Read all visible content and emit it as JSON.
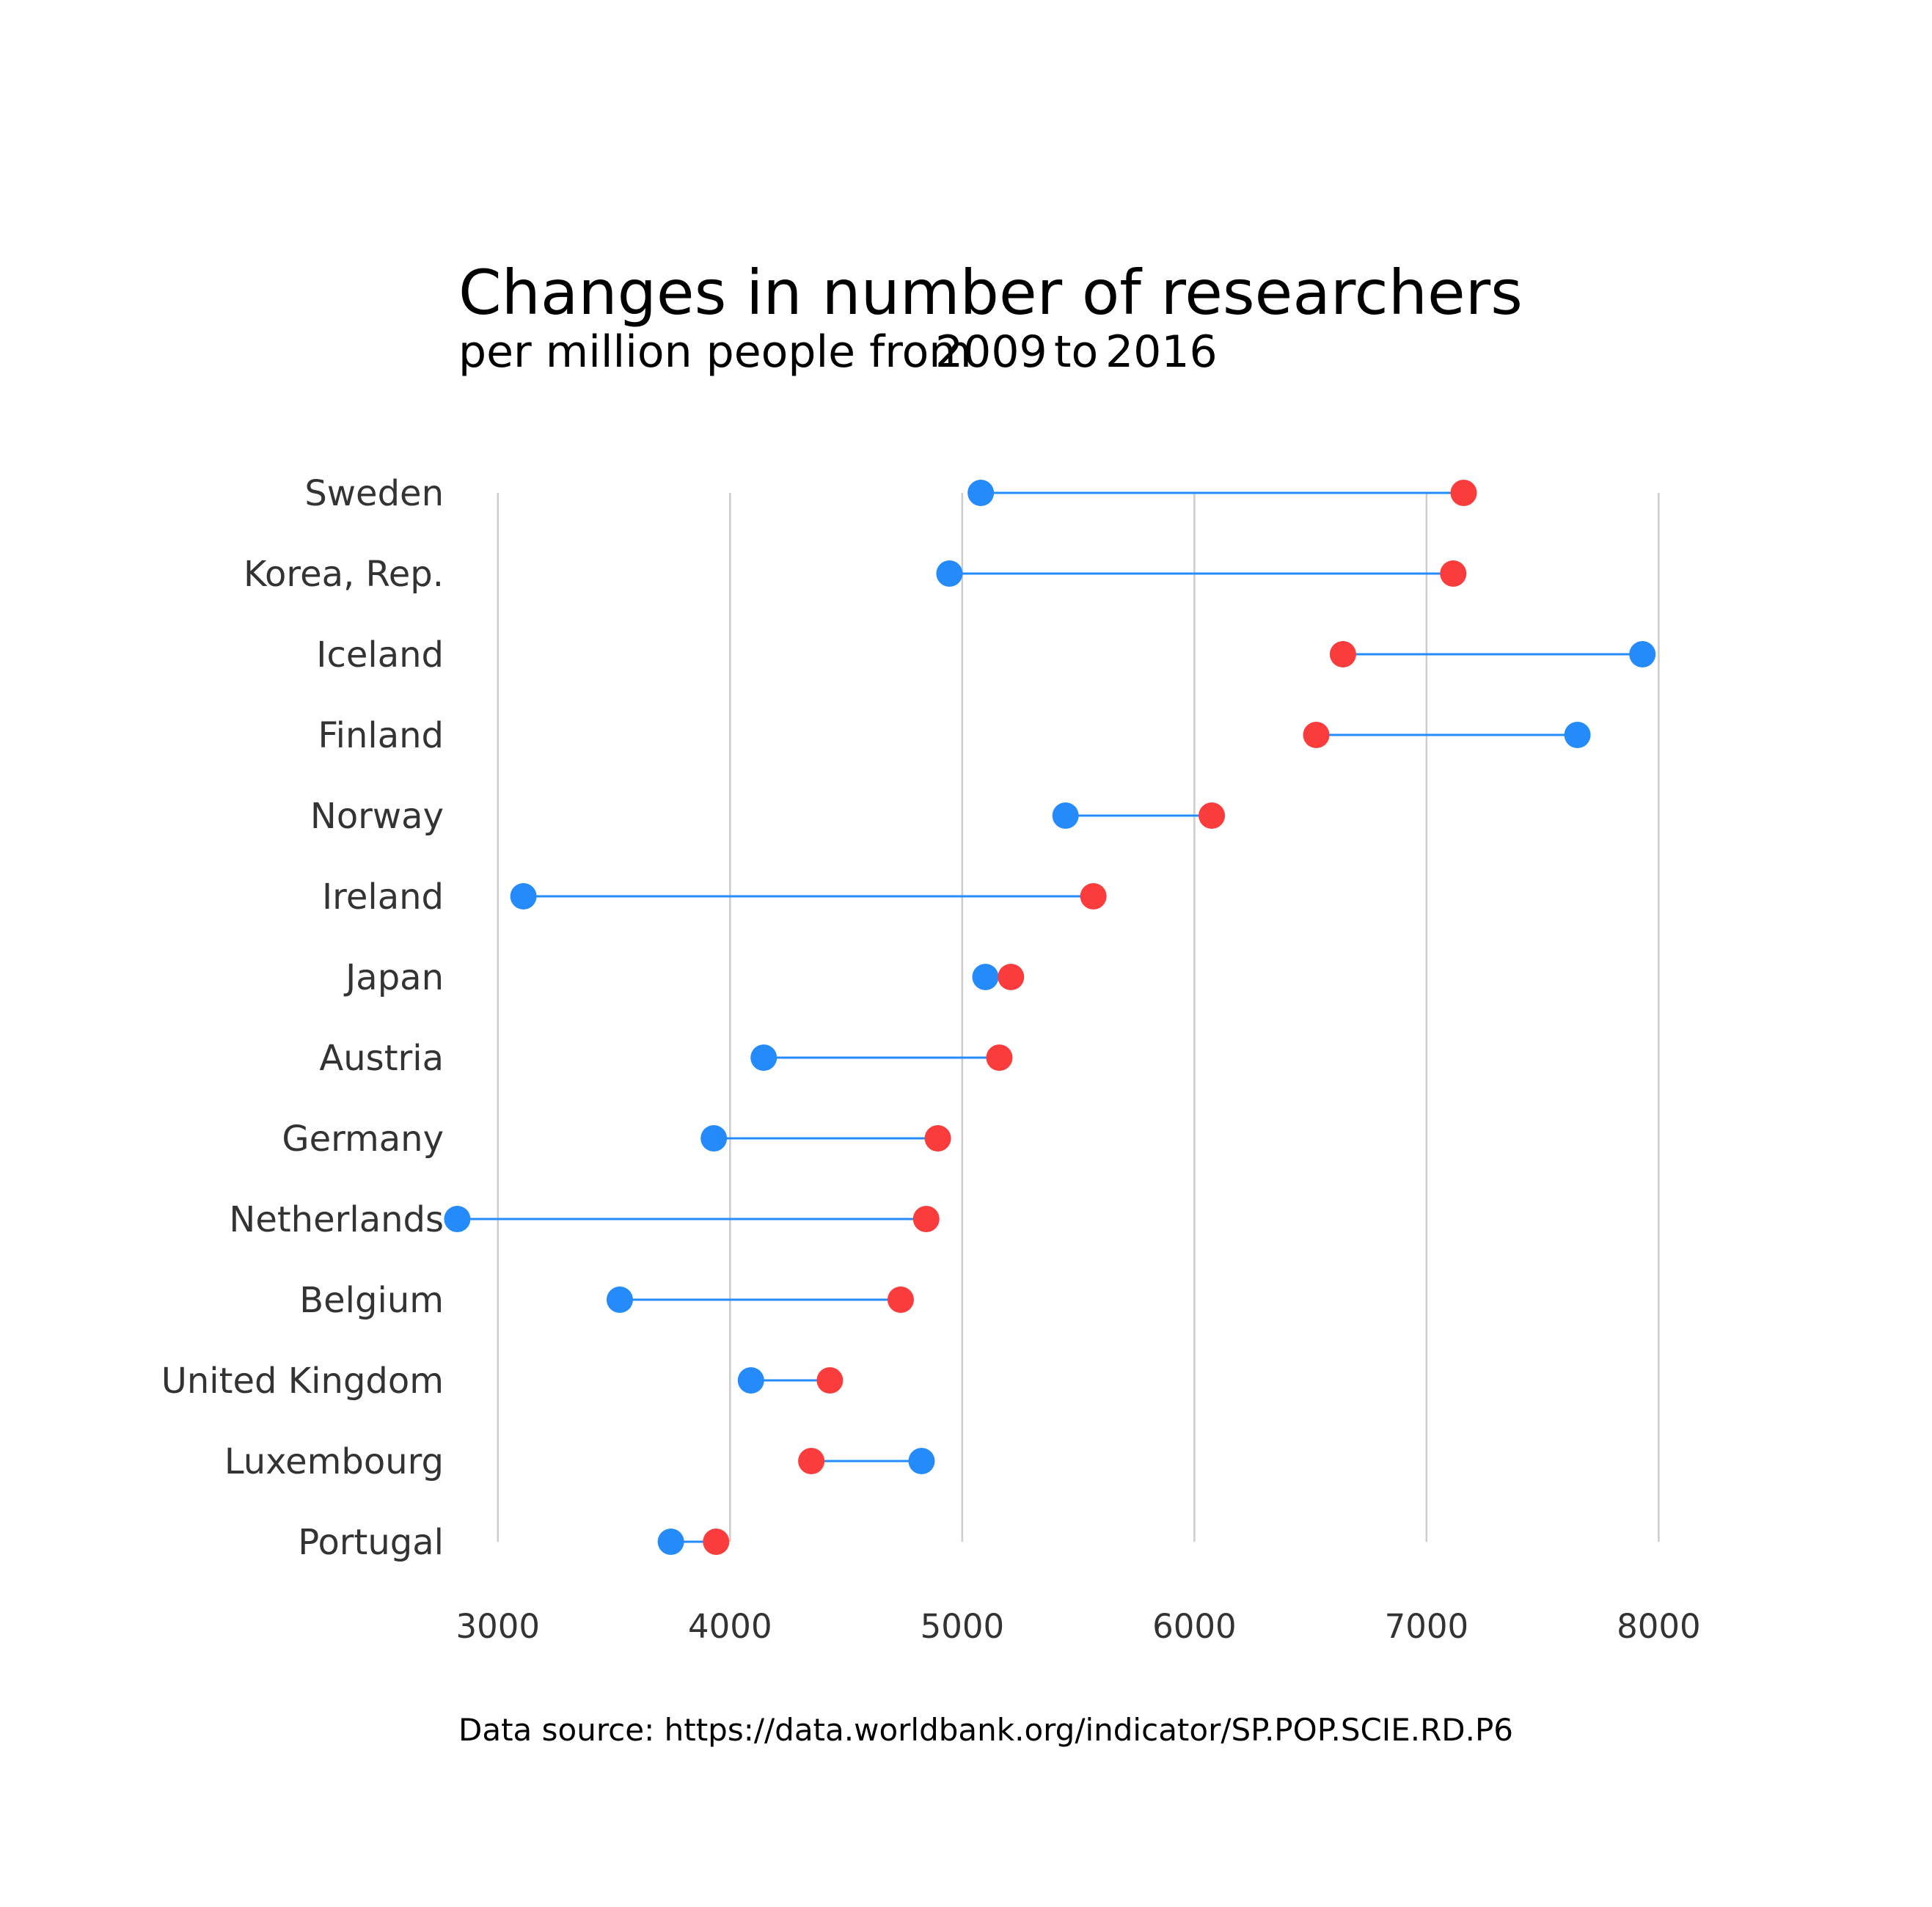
{
  "chart_data": {
    "type": "dumbbell",
    "title": "Changes in number of researchers",
    "subtitle": {
      "prefix": "per million people from",
      "start_label": "2009",
      "middle": "to",
      "end_label": "2016"
    },
    "source_text": "Data source:  https://data.worldbank.org/indicator/SP.POP.SCIE.RD.P6",
    "xlim": [
      2830,
      8280
    ],
    "xticks": [
      3000,
      4000,
      5000,
      6000,
      7000,
      8000
    ],
    "grid": true,
    "colors": {
      "2009": "#268bfa",
      "2016": "#fa3c3c"
    },
    "categories": [
      "Sweden",
      "Korea, Rep.",
      "Iceland",
      "Finland",
      "Norway",
      "Ireland",
      "Japan",
      "Austria",
      "Germany",
      "Netherlands",
      "Belgium",
      "United Kingdom",
      "Luxembourg",
      "Portugal"
    ],
    "series": [
      {
        "name": "2009",
        "values": [
          5080,
          4945,
          7930,
          7650,
          5445,
          3110,
          5100,
          4145,
          3930,
          2825,
          3525,
          4090,
          4825,
          3745
        ]
      },
      {
        "name": "2016",
        "values": [
          7160,
          7115,
          6640,
          6525,
          6075,
          5565,
          5210,
          5160,
          4895,
          4845,
          4735,
          4430,
          4350,
          3940
        ]
      }
    ]
  }
}
